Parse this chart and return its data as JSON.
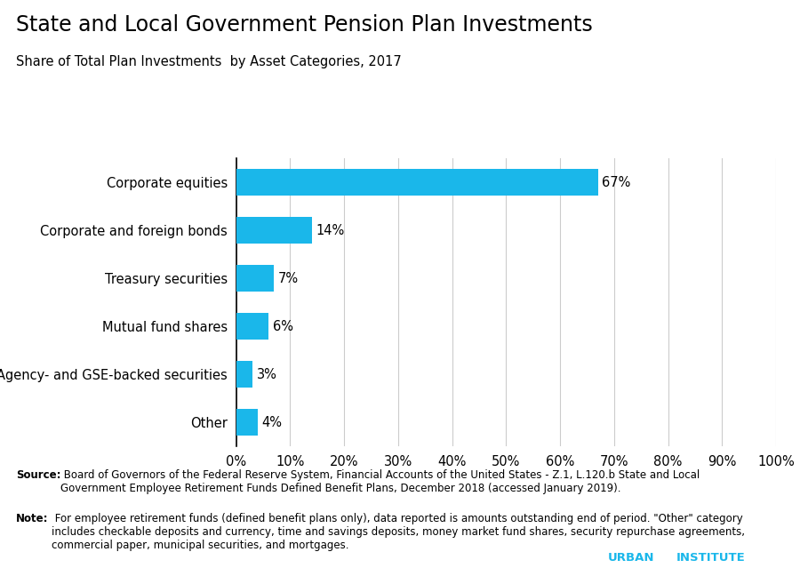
{
  "title": "State and Local Government Pension Plan Investments",
  "subtitle": "Share of Total Plan Investments  by Asset Categories, 2017",
  "categories": [
    "Corporate equities",
    "Corporate and foreign bonds",
    "Treasury securities",
    "Mutual fund shares",
    "Agency- and GSE-backed securities",
    "Other"
  ],
  "values": [
    67,
    14,
    7,
    6,
    3,
    4
  ],
  "labels": [
    "67%",
    "14%",
    "7%",
    "6%",
    "3%",
    "4%"
  ],
  "bar_color": "#1ab7ea",
  "background_color": "#ffffff",
  "title_color": "#000000",
  "subtitle_color": "#000000",
  "label_color": "#000000",
  "axis_line_color": "#000000",
  "grid_color": "#cccccc",
  "source_bold": "Source:",
  "source_rest": " Board of Governors of the Federal Reserve System, Financial Accounts of the United States - Z.1, L.120.b State and Local\nGovernment Employee Retirement Funds Defined Benefit Plans, December 2018 (accessed January 2019).",
  "note_bold": "Note:",
  "note_rest": " For employee retirement funds (defined benefit plans only), data reported is amounts outstanding end of period. \"Other\" category\nincludes checkable deposits and currency, time and savings deposits, money market fund shares, security repurchase agreements,\ncommercial paper, municipal securities, and mortgages.",
  "xlim": [
    0,
    100
  ],
  "xticks": [
    0,
    10,
    20,
    30,
    40,
    50,
    60,
    70,
    80,
    90,
    100
  ],
  "xtick_labels": [
    "0%",
    "10%",
    "20%",
    "30%",
    "40%",
    "50%",
    "60%",
    "70%",
    "80%",
    "90%",
    "100%"
  ],
  "title_fontsize": 17,
  "subtitle_fontsize": 10.5,
  "label_fontsize": 10.5,
  "tick_fontsize": 10.5,
  "source_fontsize": 8.5,
  "urban_fontsize": 9.5
}
